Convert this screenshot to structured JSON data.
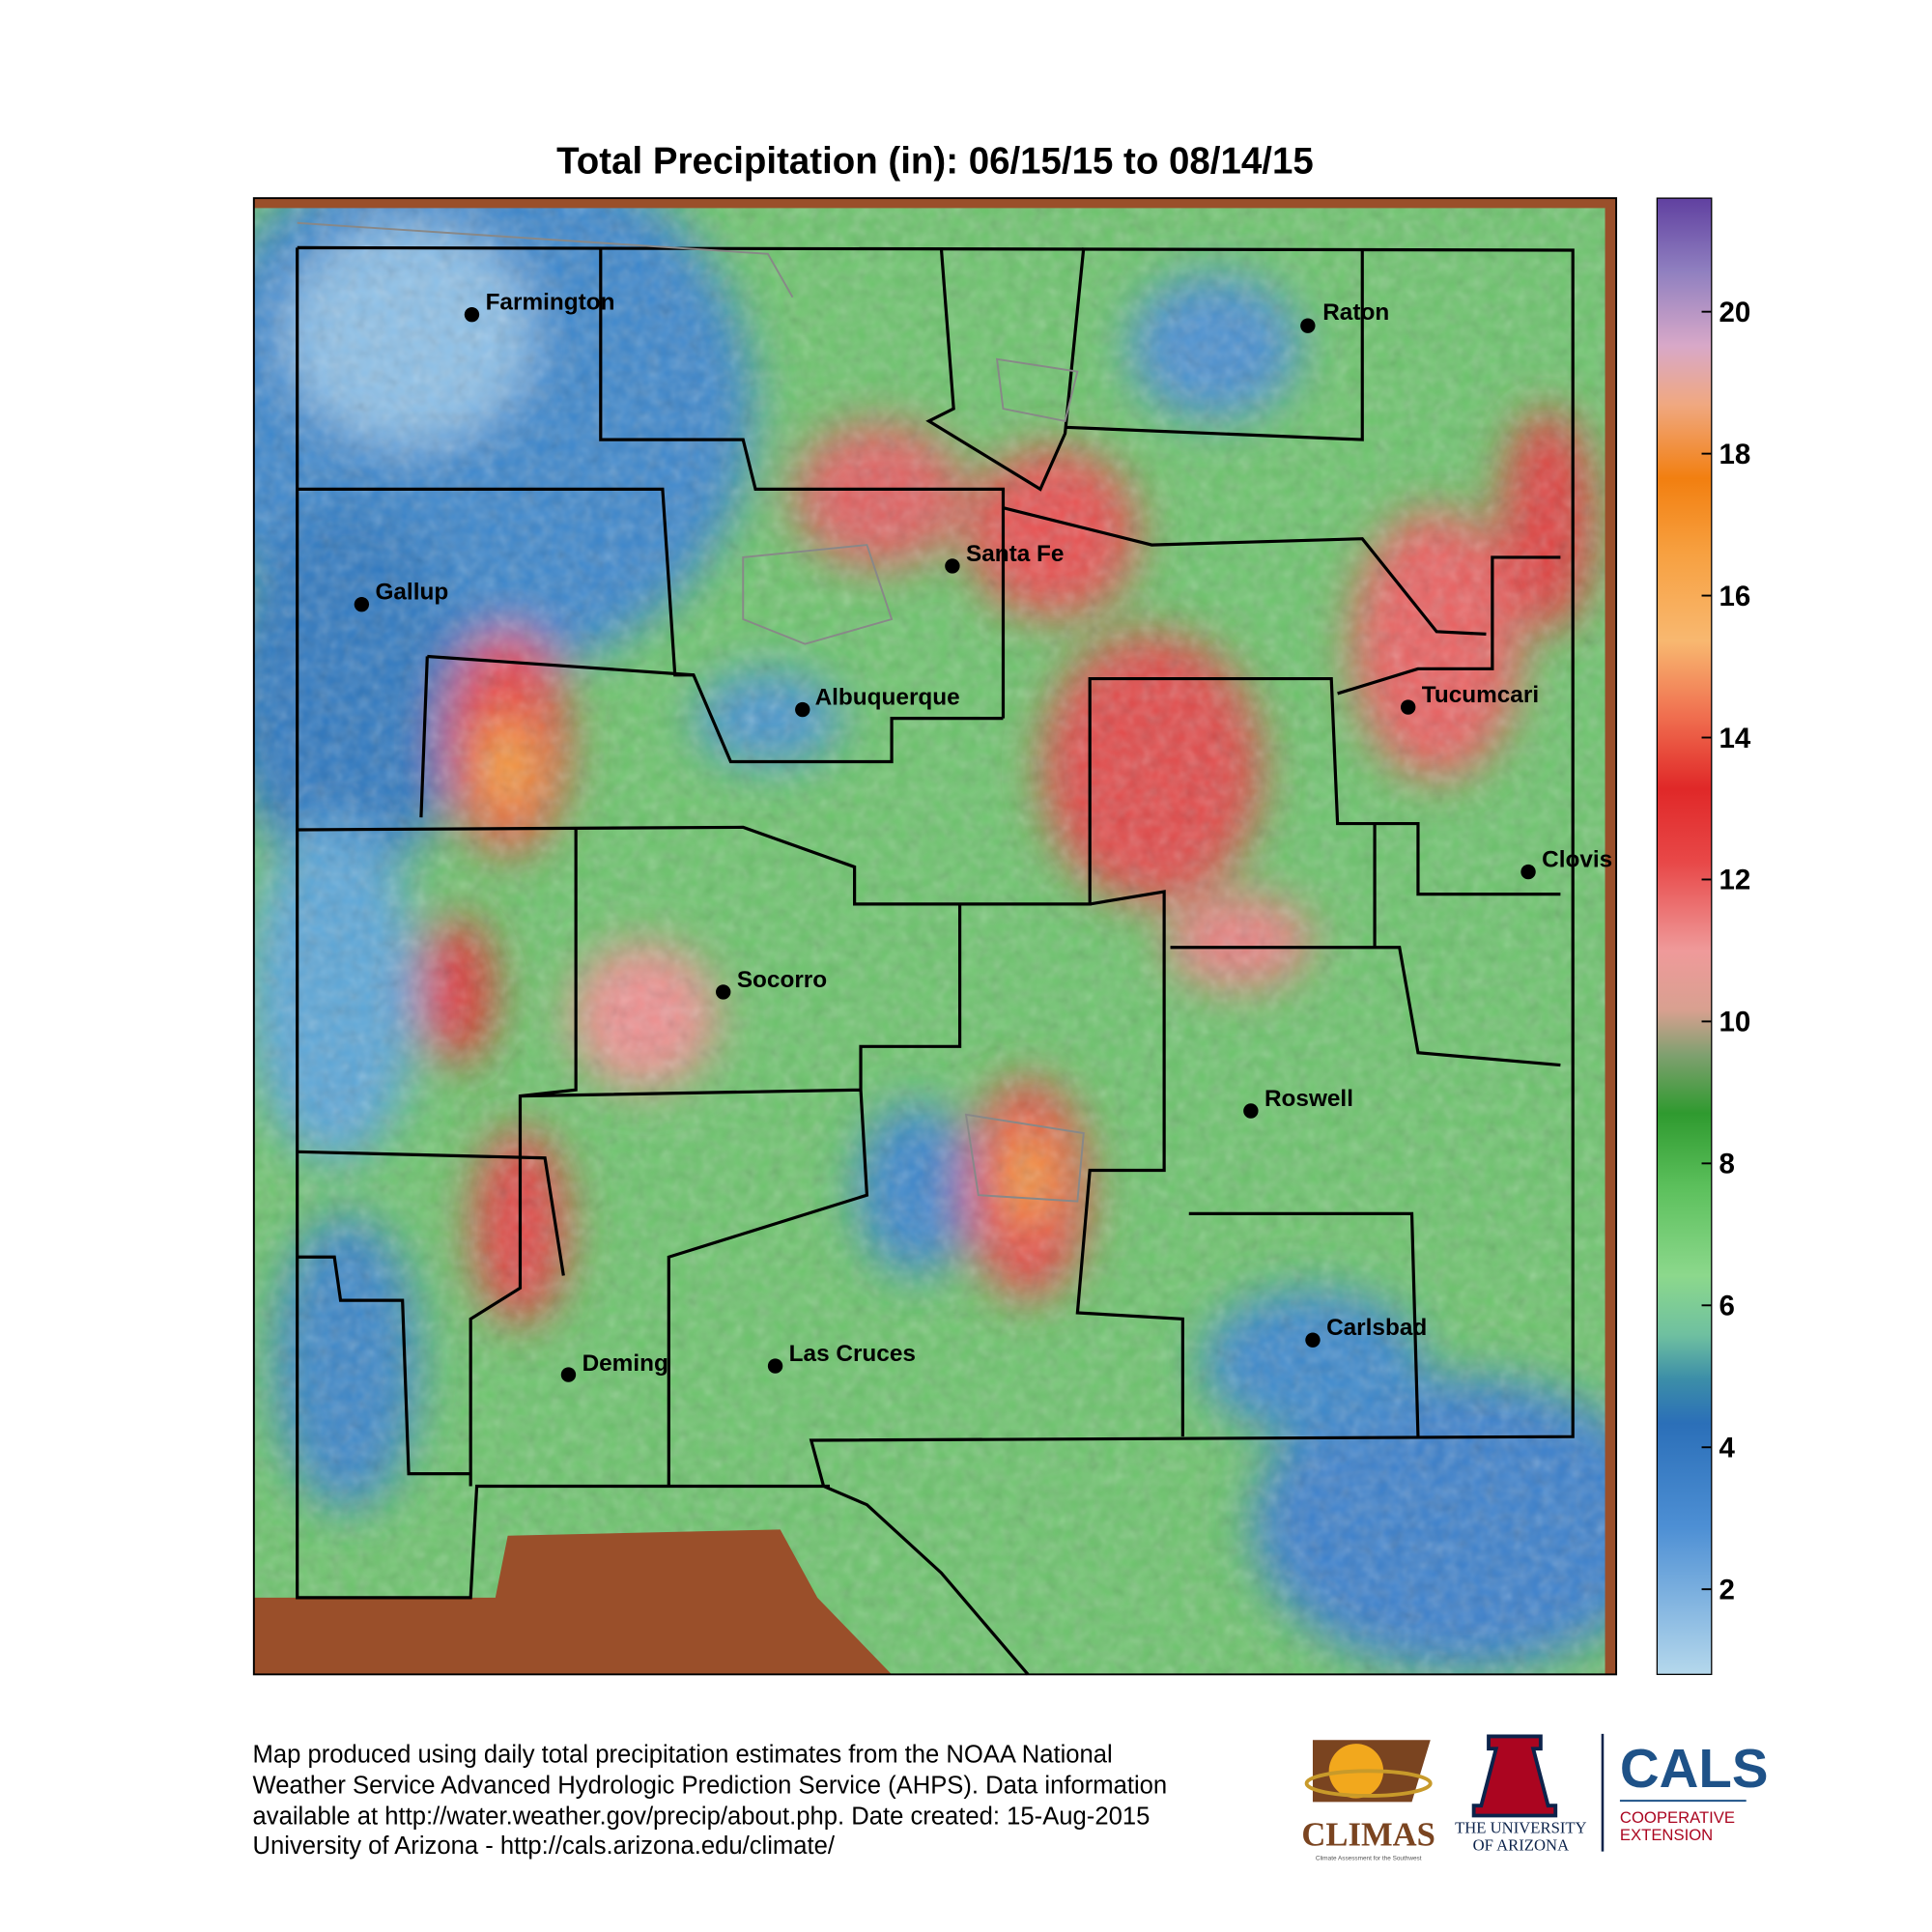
{
  "title": "Total Precipitation (in): 06/15/15 to 08/14/15",
  "cities": [
    "Farmington",
    "Raton",
    "Santa Fe",
    "Gallup",
    "Albuquerque",
    "Tucumcari",
    "Clovis",
    "Socorro",
    "Roswell",
    "Carlsbad",
    "Deming",
    "Las Cruces"
  ],
  "colorbar": {
    "lim": [
      0.8,
      21.6
    ],
    "ticks": [
      2,
      4,
      6,
      8,
      10,
      12,
      14,
      16,
      18,
      20
    ]
  },
  "footer": [
    "Map produced using daily total precipitation estimates from the NOAA National",
    "Weather Service Advanced Hydrologic Prediction Service (AHPS). Data information",
    "available at http://water.weather.gov/precip/about.php. Date created: 15-Aug-2015",
    "University of Arizona - http://cals.arizona.edu/climate/"
  ],
  "logos": {
    "climas": "CLIMAS",
    "climas_sub": "Climate Assessment for the Southwest",
    "university": [
      "THE UNIVERSITY",
      "OF ARIZONA"
    ],
    "cals": "CALS",
    "extension": [
      "COOPERATIVE",
      "EXTENSION"
    ]
  }
}
